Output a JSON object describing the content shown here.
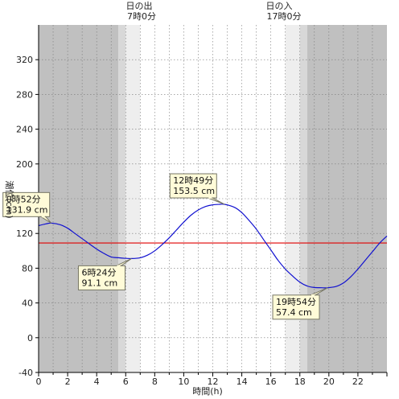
{
  "chart_data": {
    "type": "line",
    "title": "",
    "xlabel": "時間(h)",
    "ylabel": "潮位(cm)",
    "xlim": [
      0,
      24
    ],
    "ylim": [
      -40,
      360
    ],
    "x_ticks": [
      0,
      2,
      4,
      6,
      8,
      10,
      12,
      14,
      16,
      18,
      20,
      22
    ],
    "y_ticks": [
      -40,
      0,
      40,
      80,
      120,
      160,
      200,
      240,
      280,
      320
    ],
    "grid": "dotted",
    "reference_line": {
      "value": 109,
      "color": "#e00000"
    },
    "sunrise": {
      "label": "日の出",
      "time_label": "7時0分",
      "hour": 7.0
    },
    "sunset": {
      "label": "日の入",
      "time_label": "17時0分",
      "hour": 17.0
    },
    "shading": [
      {
        "from": 0,
        "to": 5.5,
        "shade": "night"
      },
      {
        "from": 5.5,
        "to": 6.0,
        "shade": "twilight"
      },
      {
        "from": 6.0,
        "to": 7.0,
        "shade": "dawn"
      },
      {
        "from": 17.0,
        "to": 18.0,
        "shade": "dawn"
      },
      {
        "from": 18.0,
        "to": 18.5,
        "shade": "twilight"
      },
      {
        "from": 18.5,
        "to": 24,
        "shade": "night"
      }
    ],
    "series": [
      {
        "color": "#1010d0",
        "x": [
          0,
          0.5,
          0.87,
          1.5,
          2,
          2.5,
          3,
          3.5,
          4,
          4.5,
          5,
          5.5,
          6,
          6.4,
          7,
          7.5,
          8,
          8.5,
          9,
          9.5,
          10,
          10.5,
          11,
          11.5,
          12,
          12.5,
          12.82,
          13.5,
          14,
          14.5,
          15,
          15.5,
          16,
          16.5,
          17,
          17.5,
          18,
          18.5,
          19,
          19.5,
          19.9,
          20.5,
          21,
          21.5,
          22,
          22.5,
          23,
          23.5,
          24
        ],
        "y": [
          129,
          131,
          131.9,
          130,
          126,
          120,
          114,
          108,
          102,
          97,
          93,
          92,
          91.3,
          91.1,
          92,
          95,
          100,
          107,
          115,
          124,
          133,
          141,
          147,
          151,
          153,
          153.5,
          153.5,
          150,
          144,
          135,
          125,
          113,
          101,
          89,
          79,
          71,
          64,
          59.5,
          57.8,
          57.5,
          57.4,
          59,
          63,
          70,
          79,
          89,
          99,
          109,
          117
        ]
      }
    ],
    "annotations": [
      {
        "label": "0時52分",
        "value": "131.9 cm",
        "x": 0.87,
        "y": 131.9
      },
      {
        "label": "6時24分",
        "value": "91.1 cm",
        "x": 6.4,
        "y": 91.1
      },
      {
        "label": "12時49分",
        "value": "153.5 cm",
        "x": 12.82,
        "y": 153.5
      },
      {
        "label": "19時54分",
        "value": "57.4 cm",
        "x": 19.9,
        "y": 57.4
      }
    ]
  },
  "colors": {
    "night": "#c0c0c0",
    "twilight": "#d8d8d8",
    "dawn": "#eeeeee",
    "day": "#ffffff",
    "annotation_bg": "#fffbd8",
    "annotation_border": "#777766"
  }
}
